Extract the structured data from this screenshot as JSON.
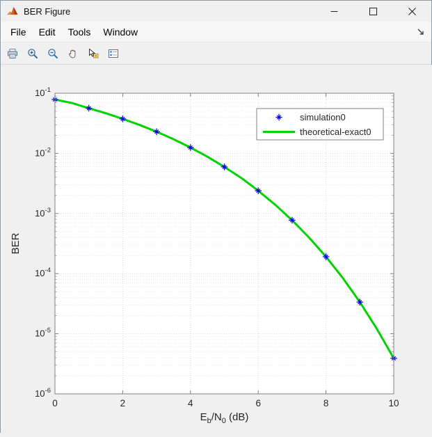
{
  "window": {
    "title": "BER Figure"
  },
  "menu": {
    "items": [
      "File",
      "Edit",
      "Tools",
      "Window"
    ]
  },
  "toolbar": {
    "buttons": [
      "Print Figure",
      "Zoom In",
      "Zoom Out",
      "Pan",
      "Data Cursor",
      "Insert Legend"
    ]
  },
  "chart_data": {
    "type": "line",
    "title": "",
    "xlabel_plain": "Eb/N0 (dB)",
    "xlabel_parts": [
      {
        "t": "E"
      },
      {
        "t": "b",
        "sub": true
      },
      {
        "t": "/N"
      },
      {
        "t": "0",
        "sub": true
      },
      {
        "t": " (dB)"
      }
    ],
    "ylabel": "BER",
    "xlim": [
      0,
      10
    ],
    "ylog_exponent_range": [
      -6,
      -1
    ],
    "xticks": [
      0,
      2,
      4,
      6,
      8,
      10
    ],
    "ytick_exponents": [
      -1,
      -2,
      -3,
      -4,
      -5,
      -6
    ],
    "grid": true,
    "legend": {
      "position": "top-right",
      "entries": [
        "simulation0",
        "theoretical-exact0"
      ]
    },
    "series": [
      {
        "name": "theoretical-exact0",
        "type": "line",
        "color": "#00d300",
        "line_width": 3,
        "x": [
          0,
          0.5,
          1,
          1.5,
          2,
          2.5,
          3,
          3.5,
          4,
          4.5,
          5,
          5.5,
          6,
          6.5,
          7,
          7.5,
          8,
          8.5,
          9,
          9.5,
          10
        ],
        "y": [
          0.0786,
          0.0689,
          0.0563,
          0.0465,
          0.0375,
          0.0297,
          0.0229,
          0.0172,
          0.0125,
          0.0088,
          0.00595,
          0.0039,
          0.00239,
          0.0014,
          0.000773,
          0.000398,
          0.000191,
          8.4e-05,
          3.36e-05,
          1.21e-05,
          3.9e-06
        ]
      },
      {
        "name": "simulation0",
        "type": "scatter",
        "marker": "asterisk",
        "color": "#0000e0",
        "x": [
          0,
          1,
          2,
          3,
          4,
          5,
          6,
          7,
          8,
          9,
          10
        ],
        "y": [
          0.0786,
          0.0563,
          0.0375,
          0.0229,
          0.0125,
          0.00595,
          0.00239,
          0.000773,
          0.000191,
          3.36e-05,
          3.9e-06
        ]
      }
    ],
    "colors": {
      "plot_background": "#ffffff",
      "figure_background": "#f0f0f0",
      "axes_box": "#808080",
      "major_grid": "#d6d6d6",
      "minor_grid": "#e8e8e8",
      "tick_label": "#262626"
    }
  }
}
